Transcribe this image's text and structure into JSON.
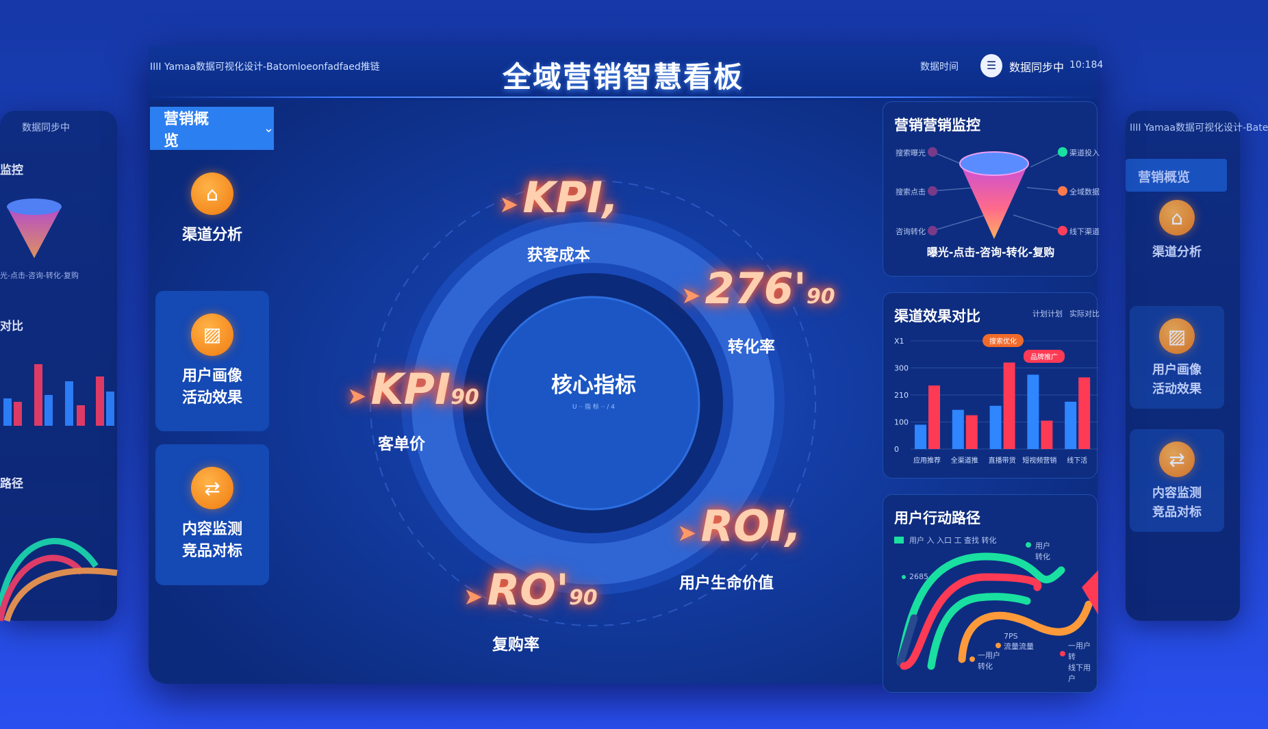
{
  "header": {
    "title": "全域营销智慧看板",
    "left_text": "IIII Yamaa数据可视化设计-Batomloeonfadfaed推链",
    "right_label": "数据时间",
    "user_name": "数据同步中",
    "time": "10:184"
  },
  "nav": {
    "dropdown_label": "营销概览",
    "items": [
      {
        "label": "渠道分析",
        "icon": "home-icon"
      },
      {
        "label": "用户画像\n活动效果",
        "icon": "chart-icon"
      },
      {
        "label": "内容监测\n竞品对标",
        "icon": "signpost-icon"
      }
    ]
  },
  "center": {
    "title": "核心指标",
    "subtitle": "U ·· 指 标 ·· / 4",
    "kpis": [
      {
        "value": "KPI,",
        "label": "获客成本"
      },
      {
        "value": "276'",
        "sub": "90",
        "label": "转化率"
      },
      {
        "value": "KPI",
        "sub": "90",
        "label": "客单价"
      },
      {
        "value": "ROI,",
        "label": "用户生命价值"
      },
      {
        "value": "RO'",
        "sub": "90",
        "label": "复购率"
      }
    ]
  },
  "funnel": {
    "title": "营销营销监控",
    "caption": "曝光-点击-咨询-转化-复购",
    "left_labels": [
      "搜索曝光",
      "搜索点击",
      "咨询转化"
    ],
    "right_labels": [
      "渠道投入",
      "全域数据",
      "线下渠道"
    ],
    "colors": {
      "left": "#7a3a8a",
      "right": [
        "#19e0a0",
        "#ff7a4a",
        "#ff3f5a"
      ]
    }
  },
  "bar_panel": {
    "title": "渠道效果对比",
    "legend": [
      "计划计划",
      "实际对比"
    ],
    "badges": [
      "搜索优化",
      "品牌推广"
    ],
    "chart_data": {
      "type": "bar",
      "categories": [
        "应用推荐",
        "全渠道推",
        "直播带货",
        "短视频营销",
        "线下活"
      ],
      "yticks": [
        "0",
        "100",
        "210",
        "300",
        "X1"
      ],
      "ylim": [
        0,
        400
      ],
      "series": [
        {
          "values": [
            90,
            145,
            160,
            275,
            175
          ],
          "color": "#2f86ff"
        },
        {
          "values": [
            235,
            125,
            320,
            105,
            265
          ],
          "color": "#ff3a55"
        }
      ]
    }
  },
  "path_panel": {
    "title": "用户行动路径",
    "legend": "用户 入 入口 工 查找 转化",
    "labels": [
      "用户\n转化",
      "2685",
      "7PS\n流量流量",
      "一用户\n转化",
      "一用户转\n线下用户"
    ]
  },
  "ghost_left": {
    "funnel_caption": "光-点击-咨询-转化-复购",
    "bar_title": "对比",
    "path_title": "路径",
    "title1": "监控"
  },
  "ghost_right": {
    "header_text": "IIII Yamaa数据可视化设计-Bate",
    "dropdown_label": "营销概览",
    "items": [
      "渠道分析",
      "用户画像\n活动效果",
      "内容监测\n竞品对标"
    ]
  }
}
